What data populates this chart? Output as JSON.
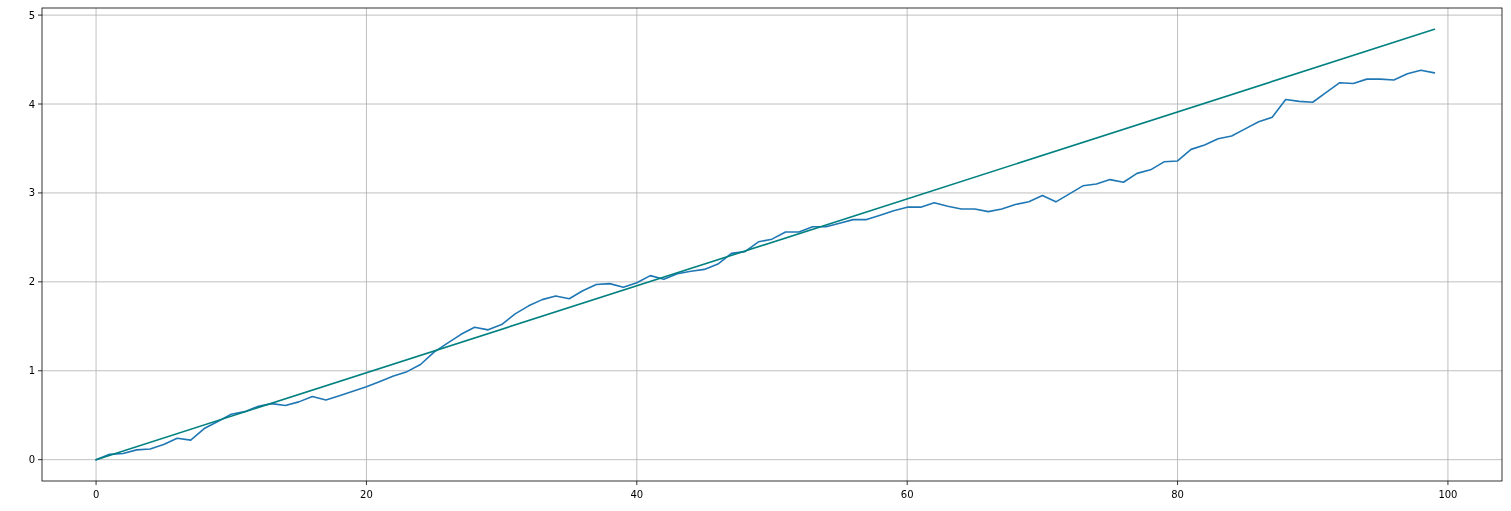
{
  "chart_data": {
    "type": "line",
    "xlim": [
      -4,
      104
    ],
    "ylim": [
      -0.24,
      5.08
    ],
    "xticks": [
      0,
      20,
      40,
      60,
      80,
      100
    ],
    "yticks": [
      0,
      1,
      2,
      3,
      4,
      5
    ],
    "grid": true,
    "series": [
      {
        "color": "#1f77b4",
        "x": [
          0,
          1,
          2,
          3,
          4,
          5,
          6,
          7,
          8,
          9,
          10,
          11,
          12,
          13,
          14,
          15,
          16,
          17,
          18,
          19,
          20,
          21,
          22,
          23,
          24,
          25,
          26,
          27,
          28,
          29,
          30,
          31,
          32,
          33,
          34,
          35,
          36,
          37,
          38,
          39,
          40,
          41,
          42,
          43,
          44,
          45,
          46,
          47,
          48,
          49,
          50,
          51,
          52,
          53,
          54,
          55,
          56,
          57,
          58,
          59,
          60,
          61,
          62,
          63,
          64,
          65,
          66,
          67,
          68,
          69,
          70,
          71,
          72,
          73,
          74,
          75,
          76,
          77,
          78,
          79,
          80,
          81,
          82,
          83,
          84,
          85,
          86,
          87,
          88,
          89,
          90,
          91,
          92,
          93,
          94,
          95,
          96,
          97,
          98,
          99
        ],
        "values": [
          0,
          0.06,
          0.07,
          0.11,
          0.12,
          0.17,
          0.24,
          0.22,
          0.35,
          0.43,
          0.51,
          0.54,
          0.6,
          0.63,
          0.61,
          0.65,
          0.71,
          0.67,
          0.72,
          0.77,
          0.82,
          0.88,
          0.94,
          0.99,
          1.07,
          1.21,
          1.31,
          1.41,
          1.49,
          1.46,
          1.52,
          1.64,
          1.73,
          1.8,
          1.84,
          1.81,
          1.9,
          1.97,
          1.98,
          1.94,
          1.99,
          2.07,
          2.03,
          2.09,
          2.12,
          2.14,
          2.2,
          2.32,
          2.34,
          2.45,
          2.48,
          2.56,
          2.56,
          2.62,
          2.62,
          2.66,
          2.7,
          2.7,
          2.75,
          2.8,
          2.84,
          2.84,
          2.89,
          2.85,
          2.82,
          2.82,
          2.79,
          2.82,
          2.87,
          2.9,
          2.97,
          2.9,
          2.99,
          3.08,
          3.1,
          3.15,
          3.12,
          3.22,
          3.26,
          3.35,
          3.36,
          3.49,
          3.54,
          3.61,
          3.64,
          3.72,
          3.8,
          3.85,
          4.05,
          4.03,
          4.02,
          4.13,
          4.24,
          4.23,
          4.28,
          4.28,
          4.27,
          4.34,
          4.38,
          4.35
        ]
      },
      {
        "color": "#008080",
        "x": [
          0,
          99
        ],
        "values": [
          0,
          4.84
        ]
      }
    ]
  }
}
